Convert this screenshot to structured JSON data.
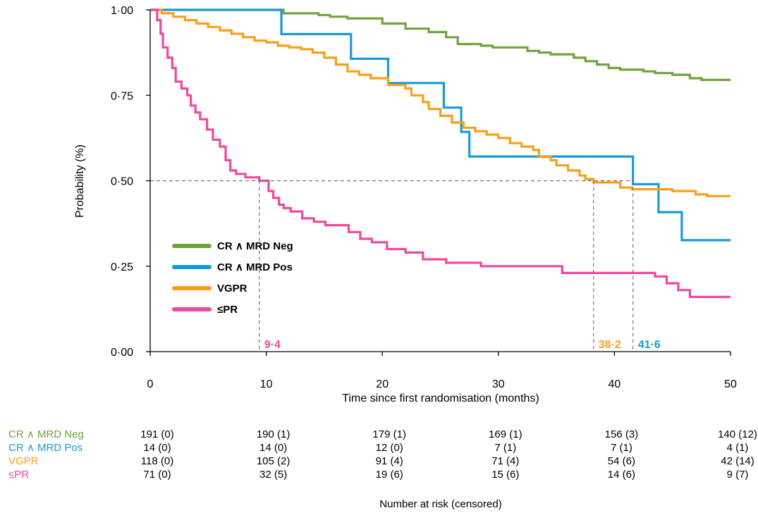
{
  "chart_data": {
    "type": "line",
    "subtype": "kaplan-meier",
    "title": "",
    "xlabel": "Time since first randomisation (months)",
    "ylabel": "Probability (%)",
    "xlim": [
      0,
      50
    ],
    "ylim": [
      0,
      1
    ],
    "x_ticks": [
      0,
      10,
      20,
      30,
      40,
      50
    ],
    "x_tick_labels": [
      "0",
      "10",
      "20",
      "30",
      "40",
      "50"
    ],
    "y_ticks": [
      0,
      0.25,
      0.5,
      0.75,
      1.0
    ],
    "y_tick_labels": [
      "0·00",
      "0·25",
      "0·50",
      "0·75",
      "1·00"
    ],
    "grid": false,
    "legend_position": "bottom-left",
    "series": [
      {
        "name": "CR ∧ MRD Neg",
        "color": "#70a33f",
        "steps": [
          [
            0,
            1.0
          ],
          [
            11.5,
            0.99
          ],
          [
            14.5,
            0.985
          ],
          [
            15.5,
            0.98
          ],
          [
            17,
            0.975
          ],
          [
            20,
            0.96
          ],
          [
            22,
            0.945
          ],
          [
            24,
            0.935
          ],
          [
            25.5,
            0.92
          ],
          [
            26.5,
            0.9
          ],
          [
            28.5,
            0.895
          ],
          [
            29.5,
            0.89
          ],
          [
            32.5,
            0.88
          ],
          [
            33.5,
            0.875
          ],
          [
            34.5,
            0.87
          ],
          [
            36.5,
            0.86
          ],
          [
            37.5,
            0.85
          ],
          [
            38.5,
            0.84
          ],
          [
            39.5,
            0.83
          ],
          [
            40.5,
            0.825
          ],
          [
            42.5,
            0.82
          ],
          [
            43.5,
            0.815
          ],
          [
            45,
            0.81
          ],
          [
            46.5,
            0.8
          ],
          [
            47.5,
            0.795
          ],
          [
            50,
            0.795
          ]
        ]
      },
      {
        "name": "CR ∧ MRD Pos",
        "color": "#1a9ad6",
        "steps": [
          [
            0,
            1.0
          ],
          [
            11.3,
            0.929
          ],
          [
            17.3,
            0.857
          ],
          [
            20.5,
            0.786
          ],
          [
            25.3,
            0.714
          ],
          [
            26.8,
            0.643
          ],
          [
            27.5,
            0.571
          ],
          [
            41.6,
            0.49
          ],
          [
            43.8,
            0.408
          ],
          [
            45.8,
            0.326
          ],
          [
            50,
            0.326
          ]
        ]
      },
      {
        "name": "VGPR",
        "color": "#f5a01a",
        "steps": [
          [
            0,
            1.0
          ],
          [
            1,
            0.99
          ],
          [
            2,
            0.98
          ],
          [
            3,
            0.97
          ],
          [
            4,
            0.96
          ],
          [
            5,
            0.95
          ],
          [
            6,
            0.94
          ],
          [
            7,
            0.93
          ],
          [
            8,
            0.92
          ],
          [
            9,
            0.91
          ],
          [
            10,
            0.905
          ],
          [
            11,
            0.895
          ],
          [
            12,
            0.89
          ],
          [
            13,
            0.885
          ],
          [
            14,
            0.875
          ],
          [
            15,
            0.86
          ],
          [
            16,
            0.84
          ],
          [
            17,
            0.82
          ],
          [
            18,
            0.81
          ],
          [
            19,
            0.8
          ],
          [
            20.5,
            0.78
          ],
          [
            22,
            0.77
          ],
          [
            22.5,
            0.75
          ],
          [
            23.5,
            0.73
          ],
          [
            24,
            0.71
          ],
          [
            25,
            0.69
          ],
          [
            26,
            0.67
          ],
          [
            27,
            0.655
          ],
          [
            28,
            0.645
          ],
          [
            29,
            0.635
          ],
          [
            30,
            0.625
          ],
          [
            31,
            0.61
          ],
          [
            32,
            0.6
          ],
          [
            33,
            0.59
          ],
          [
            33.5,
            0.57
          ],
          [
            34.5,
            0.56
          ],
          [
            35,
            0.545
          ],
          [
            36,
            0.53
          ],
          [
            37,
            0.515
          ],
          [
            37.5,
            0.505
          ],
          [
            38.2,
            0.495
          ],
          [
            40.5,
            0.48
          ],
          [
            41.5,
            0.475
          ],
          [
            45,
            0.47
          ],
          [
            47,
            0.46
          ],
          [
            48,
            0.455
          ],
          [
            50,
            0.455
          ]
        ]
      },
      {
        "name": "≤PR",
        "color": "#f0489c",
        "steps": [
          [
            0,
            1.0
          ],
          [
            0.6,
            0.97
          ],
          [
            0.9,
            0.93
          ],
          [
            1.1,
            0.89
          ],
          [
            1.5,
            0.86
          ],
          [
            1.9,
            0.83
          ],
          [
            2.2,
            0.79
          ],
          [
            2.7,
            0.77
          ],
          [
            3.2,
            0.75
          ],
          [
            3.5,
            0.72
          ],
          [
            3.9,
            0.7
          ],
          [
            4.3,
            0.68
          ],
          [
            4.9,
            0.65
          ],
          [
            5.4,
            0.62
          ],
          [
            6.0,
            0.6
          ],
          [
            6.5,
            0.56
          ],
          [
            6.9,
            0.53
          ],
          [
            7.4,
            0.52
          ],
          [
            8.2,
            0.51
          ],
          [
            9.4,
            0.5
          ],
          [
            10.2,
            0.47
          ],
          [
            10.6,
            0.45
          ],
          [
            11.1,
            0.43
          ],
          [
            11.5,
            0.42
          ],
          [
            12.1,
            0.41
          ],
          [
            13.1,
            0.39
          ],
          [
            14.1,
            0.38
          ],
          [
            15.1,
            0.37
          ],
          [
            17.1,
            0.35
          ],
          [
            18.1,
            0.33
          ],
          [
            19.1,
            0.32
          ],
          [
            20.4,
            0.3
          ],
          [
            22,
            0.29
          ],
          [
            23.5,
            0.27
          ],
          [
            25.5,
            0.26
          ],
          [
            28.5,
            0.25
          ],
          [
            35.5,
            0.23
          ],
          [
            43.5,
            0.22
          ],
          [
            44.5,
            0.2
          ],
          [
            45.5,
            0.18
          ],
          [
            46.5,
            0.16
          ],
          [
            50,
            0.16
          ]
        ]
      }
    ],
    "median_line_y": 0.5,
    "medians": [
      {
        "value": 9.4,
        "label": "9·4",
        "color": "#f0489c"
      },
      {
        "value": 38.2,
        "label": "38·2",
        "color": "#f5a01a"
      },
      {
        "value": 41.6,
        "label": "41·6",
        "color": "#1a9ad6"
      }
    ]
  },
  "risk_table": {
    "footer": "Number at risk (censored)",
    "rows": [
      {
        "label": "CR ∧ MRD Neg",
        "color": "#70a33f",
        "values": [
          "191 (0)",
          "190 (1)",
          "179 (1)",
          "169 (1)",
          "156 (3)",
          "140 (12)"
        ]
      },
      {
        "label": "CR ∧ MRD Pos",
        "color": "#1a9ad6",
        "values": [
          "14 (0)",
          "14 (0)",
          "12 (0)",
          "7 (1)",
          "7 (1)",
          "4 (1)"
        ]
      },
      {
        "label": "VGPR",
        "color": "#f5a01a",
        "values": [
          "118 (0)",
          "105 (2)",
          "91 (4)",
          "71 (4)",
          "54 (6)",
          "42 (14)"
        ]
      },
      {
        "label": "≤PR",
        "color": "#f0489c",
        "values": [
          "71 (0)",
          "32 (5)",
          "19 (6)",
          "15 (6)",
          "14 (6)",
          "9 (7)"
        ]
      }
    ]
  }
}
